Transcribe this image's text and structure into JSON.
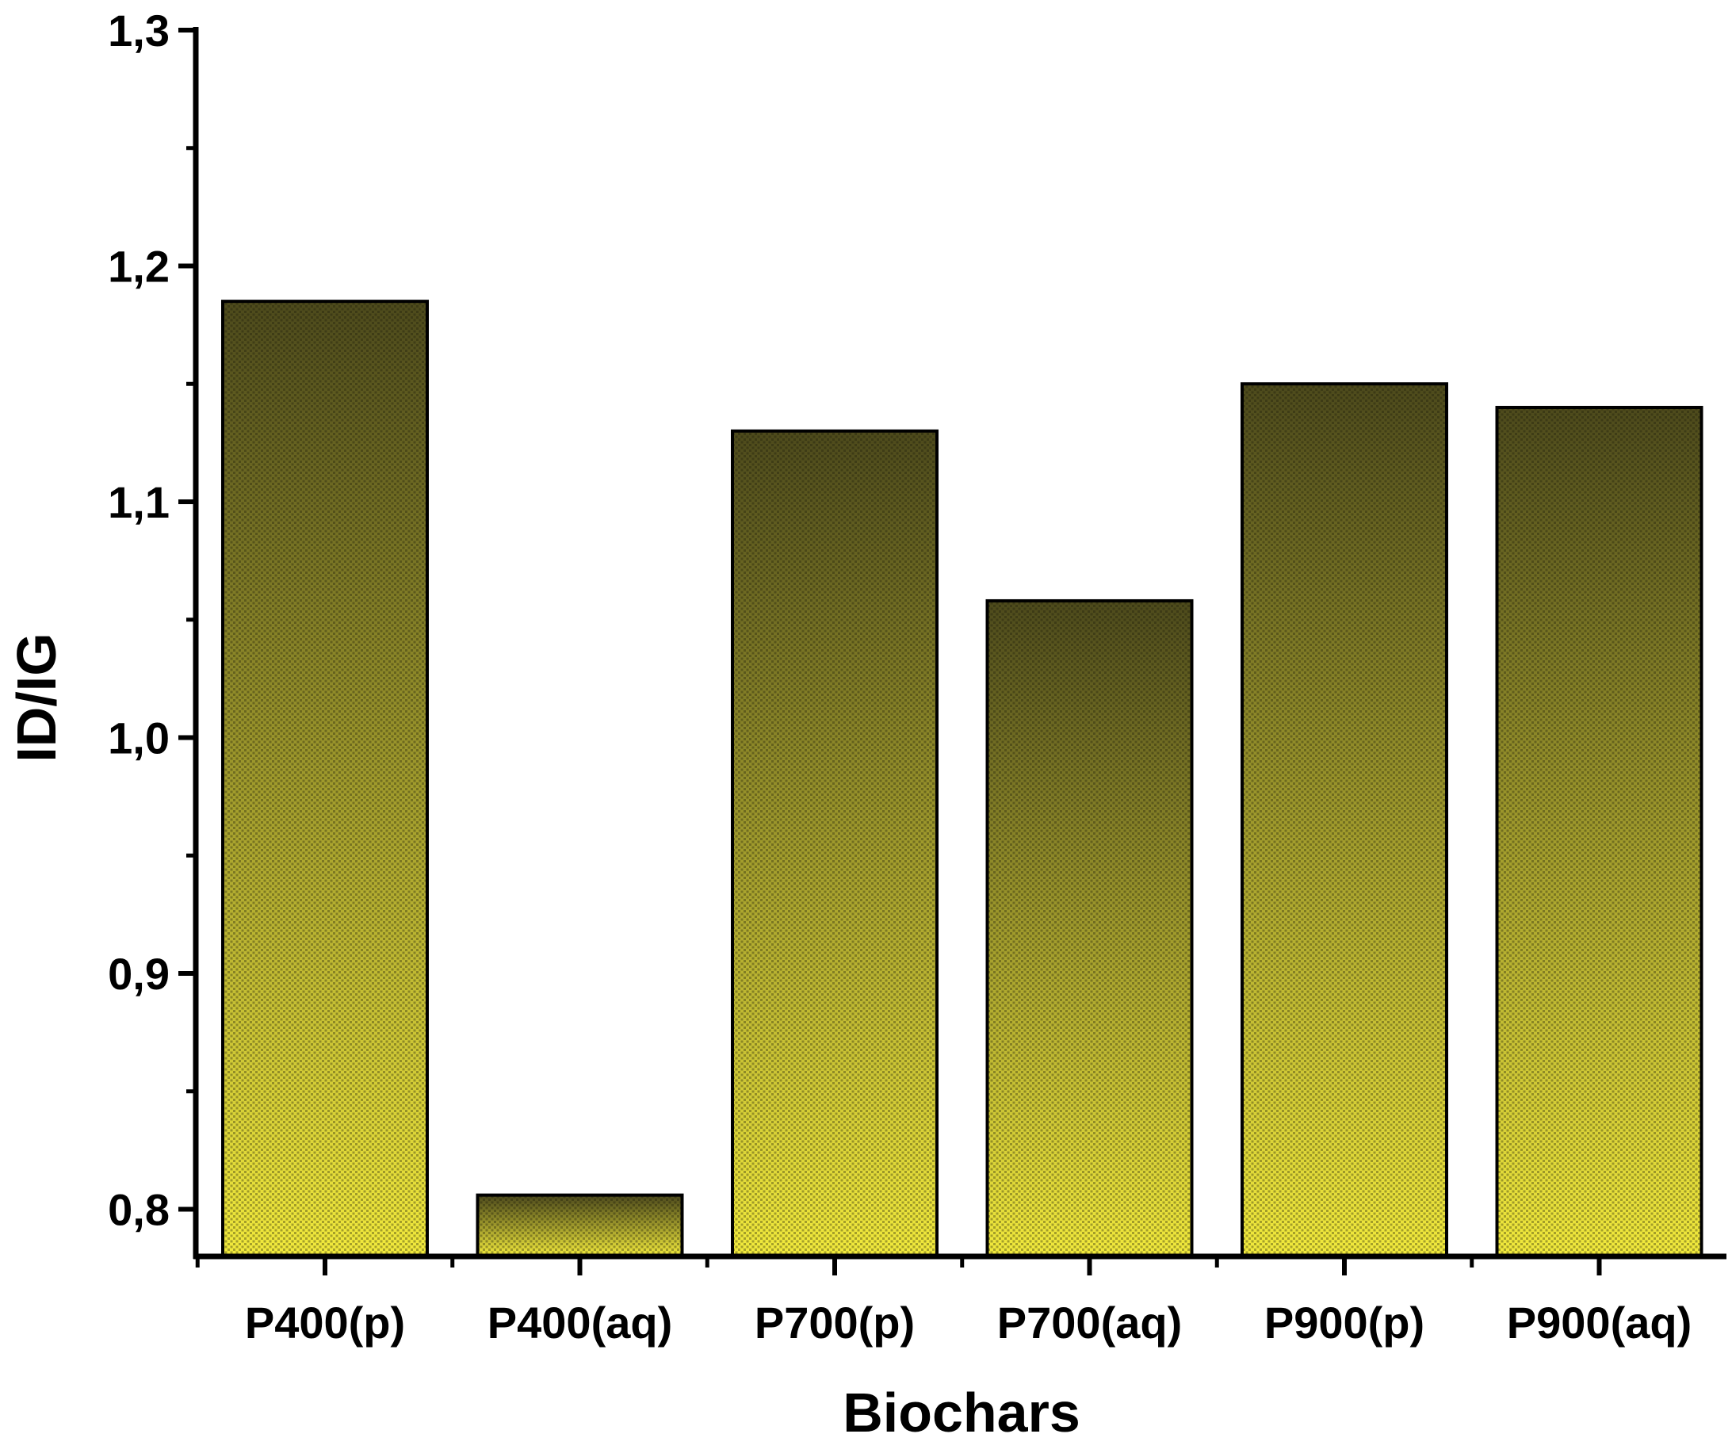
{
  "chart_data": {
    "type": "bar",
    "categories": [
      "P400(p)",
      "P400(aq)",
      "P700(p)",
      "P700(aq)",
      "P900(p)",
      "P900(aq)"
    ],
    "values": [
      1.185,
      0.806,
      1.13,
      1.058,
      1.15,
      1.14
    ],
    "xlabel": "Biochars",
    "ylabel": "ID/IG",
    "ylim": [
      0.78,
      1.3
    ],
    "yticks": [
      0.8,
      0.9,
      1.0,
      1.1,
      1.2,
      1.3
    ],
    "ytick_labels": [
      "0,8",
      "0,9",
      "1,0",
      "1,1",
      "1,2",
      "1,3"
    ],
    "grid": false,
    "legend": "none",
    "colors": {
      "bar_top": "#4d4a1c",
      "bar_bottom": "#f2ea3c",
      "bar_dot": "#1a1a08",
      "edge": "#000000",
      "axis": "#000000"
    }
  }
}
